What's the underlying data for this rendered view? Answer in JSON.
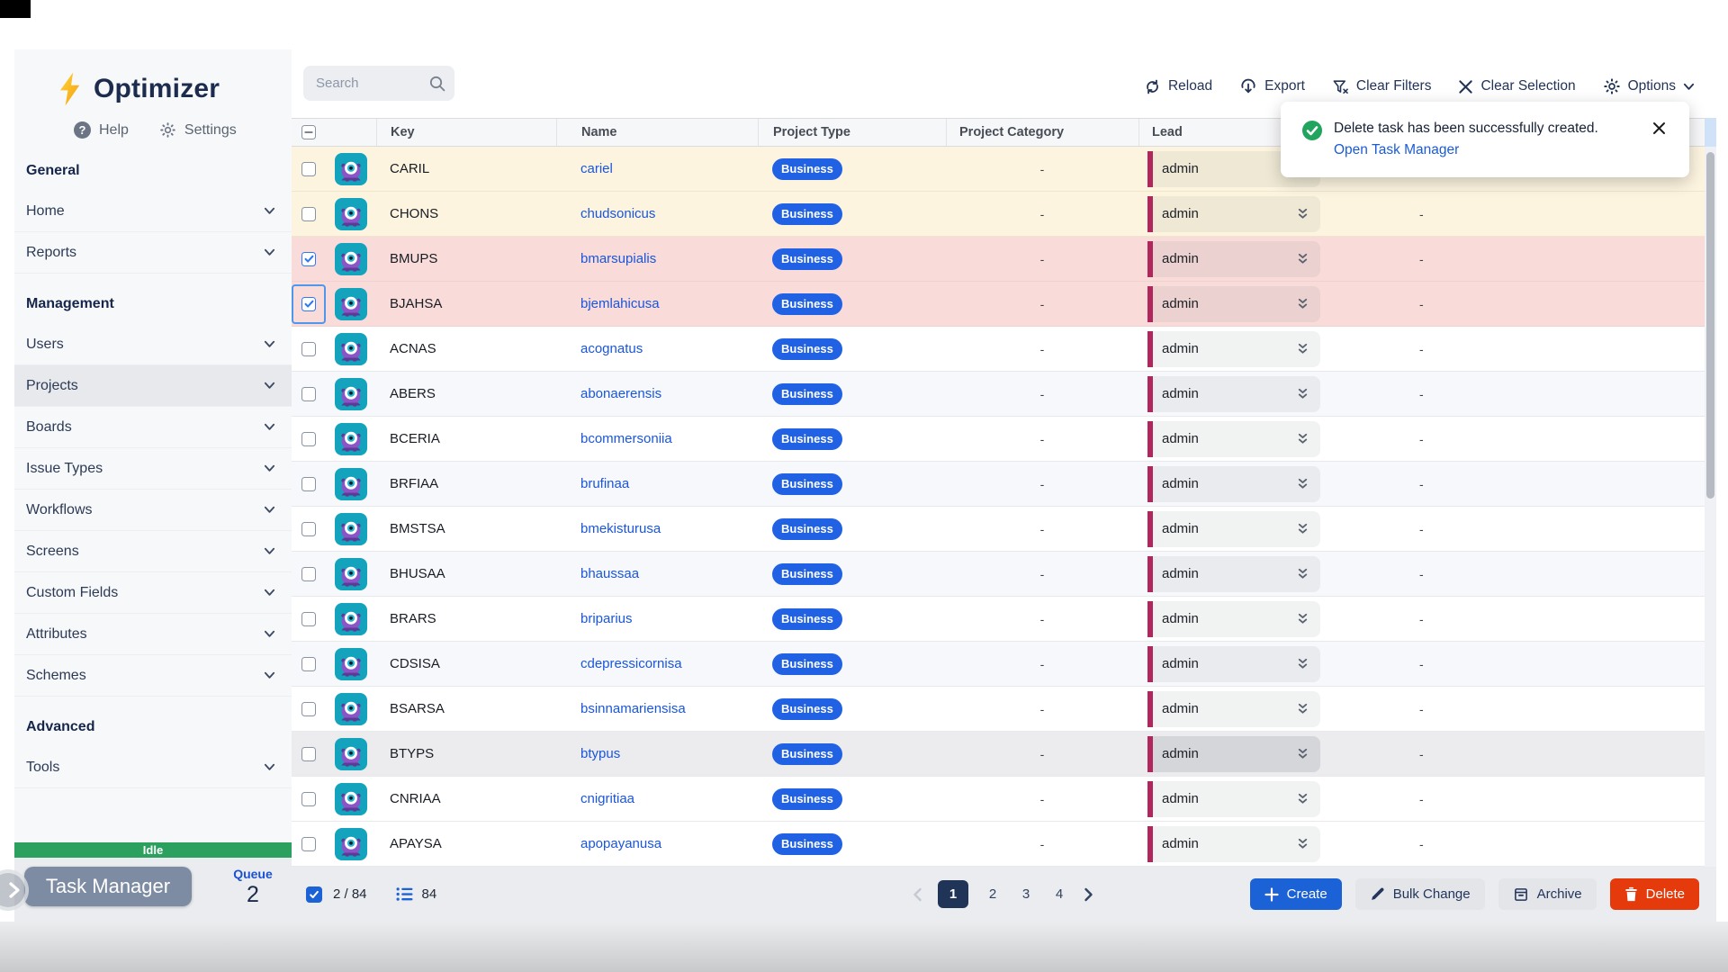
{
  "app": {
    "name": "Optimizer"
  },
  "sidebar": {
    "help_label": "Help",
    "settings_label": "Settings",
    "sections": [
      {
        "header": "General",
        "items": [
          {
            "label": "Home"
          },
          {
            "label": "Reports"
          }
        ]
      },
      {
        "header": "Management",
        "items": [
          {
            "label": "Users"
          },
          {
            "label": "Projects",
            "active": true
          },
          {
            "label": "Boards"
          },
          {
            "label": "Issue Types"
          },
          {
            "label": "Workflows"
          },
          {
            "label": "Screens"
          },
          {
            "label": "Custom Fields"
          },
          {
            "label": "Attributes"
          },
          {
            "label": "Schemes"
          }
        ]
      },
      {
        "header": "Advanced",
        "items": [
          {
            "label": "Tools"
          }
        ]
      }
    ],
    "status": "Idle",
    "task_manager_label": "Task Manager",
    "queue_label": "Queue",
    "queue_count": "2",
    "idle_color": "#2ca05f"
  },
  "toolbar": {
    "search_placeholder": "Search",
    "actions": [
      {
        "id": "reload",
        "label": "Reload",
        "icon": "reload-icon"
      },
      {
        "id": "export",
        "label": "Export",
        "icon": "export-icon"
      },
      {
        "id": "clear-filters",
        "label": "Clear Filters",
        "icon": "filter-clear-icon"
      },
      {
        "id": "clear-selection",
        "label": "Clear Selection",
        "icon": "x-icon"
      },
      {
        "id": "options",
        "label": "Options",
        "icon": "gear-icon",
        "chevron": true
      }
    ]
  },
  "toast": {
    "message": "Delete task has been successfully created.",
    "link": "Open Task Manager",
    "icon_color": "#21a45d"
  },
  "table": {
    "columns": [
      "",
      "",
      "Key",
      "Name",
      "Project Type",
      "Project Category",
      "Lead",
      ""
    ],
    "type_badge_color": "#2161e3",
    "lead_bar_color": "#b1265c",
    "rows": [
      {
        "key": "CARIL",
        "name": "cariel",
        "type": "Business",
        "category": "-",
        "lead": "admin",
        "extra": "-",
        "state": "cream",
        "checked": false
      },
      {
        "key": "CHONS",
        "name": "chudsonicus",
        "type": "Business",
        "category": "-",
        "lead": "admin",
        "extra": "-",
        "state": "cream",
        "checked": false
      },
      {
        "key": "BMUPS",
        "name": "bmarsupialis",
        "type": "Business",
        "category": "-",
        "lead": "admin",
        "extra": "-",
        "state": "selected",
        "checked": true
      },
      {
        "key": "BJAHSA",
        "name": "bjemlahicusa",
        "type": "Business",
        "category": "-",
        "lead": "admin",
        "extra": "-",
        "state": "selected",
        "checked": true,
        "focus": true
      },
      {
        "key": "ACNAS",
        "name": "acognatus",
        "type": "Business",
        "category": "-",
        "lead": "admin",
        "extra": "-",
        "state": "white",
        "checked": false
      },
      {
        "key": "ABERS",
        "name": "abonaerensis",
        "type": "Business",
        "category": "-",
        "lead": "admin",
        "extra": "-",
        "state": "alt",
        "checked": false
      },
      {
        "key": "BCERIA",
        "name": "bcommersoniia",
        "type": "Business",
        "category": "-",
        "lead": "admin",
        "extra": "-",
        "state": "white",
        "checked": false
      },
      {
        "key": "BRFIAA",
        "name": "brufinaa",
        "type": "Business",
        "category": "-",
        "lead": "admin",
        "extra": "-",
        "state": "alt",
        "checked": false
      },
      {
        "key": "BMSTSA",
        "name": "bmekisturusa",
        "type": "Business",
        "category": "-",
        "lead": "admin",
        "extra": "-",
        "state": "white",
        "checked": false
      },
      {
        "key": "BHUSAA",
        "name": "bhaussaa",
        "type": "Business",
        "category": "-",
        "lead": "admin",
        "extra": "-",
        "state": "alt",
        "checked": false
      },
      {
        "key": "BRARS",
        "name": "briparius",
        "type": "Business",
        "category": "-",
        "lead": "admin",
        "extra": "-",
        "state": "white",
        "checked": false
      },
      {
        "key": "CDSISA",
        "name": "cdepressicornisa",
        "type": "Business",
        "category": "-",
        "lead": "admin",
        "extra": "-",
        "state": "alt",
        "checked": false
      },
      {
        "key": "BSARSA",
        "name": "bsinnamariensisa",
        "type": "Business",
        "category": "-",
        "lead": "admin",
        "extra": "-",
        "state": "white",
        "checked": false
      },
      {
        "key": "BTYPS",
        "name": "btypus",
        "type": "Business",
        "category": "-",
        "lead": "admin",
        "extra": "-",
        "state": "hover",
        "checked": false
      },
      {
        "key": "CNRIAA",
        "name": "cnigritiaa",
        "type": "Business",
        "category": "-",
        "lead": "admin",
        "extra": "-",
        "state": "white",
        "checked": false
      },
      {
        "key": "APAYSA",
        "name": "apopayanusa",
        "type": "Business",
        "category": "-",
        "lead": "admin",
        "extra": "-",
        "state": "white",
        "checked": false
      }
    ]
  },
  "footer": {
    "selected_summary": "2 / 84",
    "list_total": "84",
    "pages": [
      "1",
      "2",
      "3",
      "4"
    ],
    "active_page": "1",
    "buttons": [
      {
        "id": "create",
        "label": "Create",
        "icon": "plus-icon",
        "style": "primary"
      },
      {
        "id": "bulk-change",
        "label": "Bulk Change",
        "icon": "pencil-icon",
        "style": "secondary"
      },
      {
        "id": "archive",
        "label": "Archive",
        "icon": "archive-icon",
        "style": "secondary"
      },
      {
        "id": "delete",
        "label": "Delete",
        "icon": "trash-icon",
        "style": "danger"
      }
    ]
  }
}
